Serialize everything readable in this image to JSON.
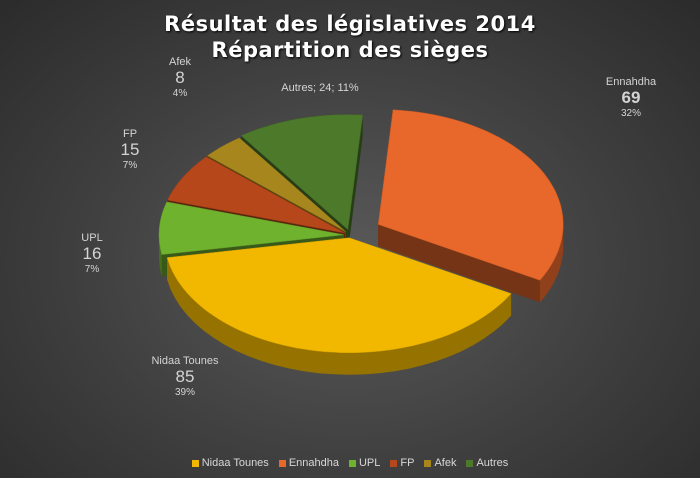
{
  "title_line1": "Résultat des législatives 2014",
  "title_line2": "Répartition des sièges",
  "chart_data": {
    "type": "pie",
    "title": "Résultat des législatives 2014 Répartition des sièges",
    "slices": [
      {
        "name": "Nidaa Tounes",
        "value": 85,
        "percent": "39%",
        "color": "#f2b800"
      },
      {
        "name": "Ennahdha",
        "value": 69,
        "percent": "32%",
        "color": "#e8672a"
      },
      {
        "name": "UPL",
        "value": 16,
        "percent": "7%",
        "color": "#6fb22e"
      },
      {
        "name": "FP",
        "value": 15,
        "percent": "7%",
        "color": "#b5471a"
      },
      {
        "name": "Afek",
        "value": 8,
        "percent": "4%",
        "color": "#a8861e"
      },
      {
        "name": "Autres",
        "value": 24,
        "percent": "11%",
        "color": "#4d7a2a"
      }
    ],
    "data_labels": {
      "Ennahdha": {
        "name": "Ennahdha",
        "value": "69",
        "percent": "32%"
      },
      "Nidaa Tounes": {
        "name": "Nidaa Tounes",
        "value": "85",
        "percent": "39%"
      },
      "UPL": {
        "name": "UPL",
        "value": "16",
        "percent": "7%"
      },
      "FP": {
        "name": "FP",
        "value": "15",
        "percent": "7%"
      },
      "Afek": {
        "name": "Afek",
        "value": "8",
        "percent": "4%"
      },
      "Autres": {
        "text": "Autres; 24; 11%"
      }
    },
    "legend_position": "bottom"
  }
}
